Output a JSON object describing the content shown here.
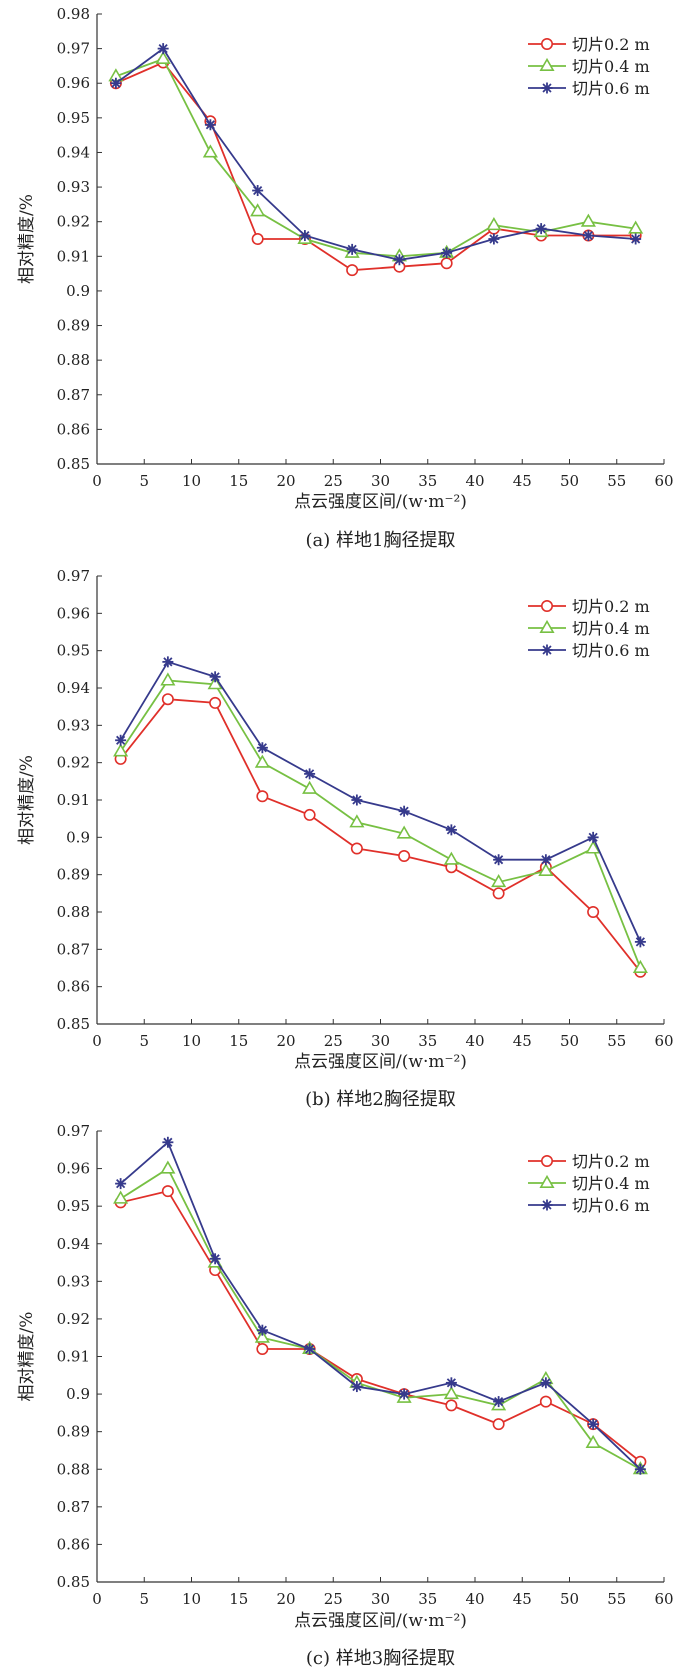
{
  "chart_data": [
    {
      "type": "line",
      "caption": "(a) 样地1胸径提取",
      "xlabel": "点云强度区间/(w·m⁻²)",
      "ylabel": "相对精度/%",
      "xlim": [
        0,
        60
      ],
      "ylim": [
        0.85,
        0.98
      ],
      "xticks": [
        "0",
        "5",
        "10",
        "15",
        "20",
        "25",
        "30",
        "35",
        "40",
        "45",
        "50",
        "55",
        "60"
      ],
      "yticks": [
        "0.85",
        "0.86",
        "0.87",
        "0.88",
        "0.89",
        "0.9",
        "0.91",
        "0.92",
        "0.93",
        "0.94",
        "0.95",
        "0.96",
        "0.97",
        "0.98"
      ],
      "legend_position": "top-right",
      "grid": false,
      "x": [
        2,
        7,
        12,
        17,
        22,
        27,
        32,
        37,
        42,
        47,
        52,
        57
      ],
      "series": [
        {
          "name": "切片0.2 m",
          "color": "#e0302a",
          "marker": "circle",
          "values": [
            0.96,
            0.966,
            0.949,
            0.915,
            0.915,
            0.906,
            0.907,
            0.908,
            0.918,
            0.916,
            0.916,
            0.916
          ]
        },
        {
          "name": "切片0.4 m",
          "color": "#77c043",
          "marker": "triangle",
          "values": [
            0.962,
            0.967,
            0.94,
            0.923,
            0.915,
            0.911,
            0.91,
            0.911,
            0.919,
            0.917,
            0.92,
            0.918
          ]
        },
        {
          "name": "切片0.6 m",
          "color": "#363a8c",
          "marker": "star",
          "values": [
            0.96,
            0.97,
            0.948,
            0.929,
            0.916,
            0.912,
            0.909,
            0.911,
            0.915,
            0.918,
            0.916,
            0.915
          ]
        }
      ]
    },
    {
      "type": "line",
      "caption": "(b) 样地2胸径提取",
      "xlabel": "点云强度区间/(w·m⁻²)",
      "ylabel": "相对精度/%",
      "xlim": [
        0,
        60
      ],
      "ylim": [
        0.85,
        0.97
      ],
      "xticks": [
        "0",
        "5",
        "10",
        "15",
        "20",
        "25",
        "30",
        "35",
        "40",
        "45",
        "50",
        "55",
        "60"
      ],
      "yticks": [
        "0.85",
        "0.86",
        "0.87",
        "0.88",
        "0.89",
        "0.9",
        "0.91",
        "0.92",
        "0.93",
        "0.94",
        "0.95",
        "0.96",
        "0.97"
      ],
      "legend_position": "top-right",
      "grid": false,
      "x": [
        2.5,
        7.5,
        12.5,
        17.5,
        22.5,
        27.5,
        32.5,
        37.5,
        42.5,
        47.5,
        52.5,
        57.5
      ],
      "series": [
        {
          "name": "切片0.2 m",
          "color": "#e0302a",
          "marker": "circle",
          "values": [
            0.921,
            0.937,
            0.936,
            0.911,
            0.906,
            0.897,
            0.895,
            0.892,
            0.885,
            0.892,
            0.88,
            0.864
          ]
        },
        {
          "name": "切片0.4 m",
          "color": "#77c043",
          "marker": "triangle",
          "values": [
            0.923,
            0.942,
            0.941,
            0.92,
            0.913,
            0.904,
            0.901,
            0.894,
            0.888,
            0.891,
            0.897,
            0.865
          ]
        },
        {
          "name": "切片0.6 m",
          "color": "#363a8c",
          "marker": "star",
          "values": [
            0.926,
            0.947,
            0.943,
            0.924,
            0.917,
            0.91,
            0.907,
            0.902,
            0.894,
            0.894,
            0.9,
            0.872
          ]
        }
      ]
    },
    {
      "type": "line",
      "caption": "(c) 样地3胸径提取",
      "xlabel": "点云强度区间/(w·m⁻²)",
      "ylabel": "相对精度/%",
      "xlim": [
        0,
        60
      ],
      "ylim": [
        0.85,
        0.97
      ],
      "xticks": [
        "0",
        "5",
        "10",
        "15",
        "20",
        "25",
        "30",
        "35",
        "40",
        "45",
        "50",
        "55",
        "60"
      ],
      "yticks": [
        "0.85",
        "0.86",
        "0.87",
        "0.88",
        "0.89",
        "0.9",
        "0.91",
        "0.92",
        "0.93",
        "0.94",
        "0.95",
        "0.96",
        "0.97"
      ],
      "legend_position": "top-right",
      "grid": false,
      "x": [
        2.5,
        7.5,
        12.5,
        17.5,
        22.5,
        27.5,
        32.5,
        37.5,
        42.5,
        47.5,
        52.5,
        57.5
      ],
      "series": [
        {
          "name": "切片0.2 m",
          "color": "#e0302a",
          "marker": "circle",
          "values": [
            0.951,
            0.954,
            0.933,
            0.912,
            0.912,
            0.904,
            0.9,
            0.897,
            0.892,
            0.898,
            0.892,
            0.882
          ]
        },
        {
          "name": "切片0.4 m",
          "color": "#77c043",
          "marker": "triangle",
          "values": [
            0.952,
            0.96,
            0.935,
            0.915,
            0.912,
            0.903,
            0.899,
            0.9,
            0.897,
            0.904,
            0.887,
            0.88
          ]
        },
        {
          "name": "切片0.6 m",
          "color": "#363a8c",
          "marker": "star",
          "values": [
            0.956,
            0.967,
            0.936,
            0.917,
            0.912,
            0.902,
            0.9,
            0.903,
            0.898,
            0.903,
            0.892,
            0.88
          ]
        }
      ]
    }
  ]
}
